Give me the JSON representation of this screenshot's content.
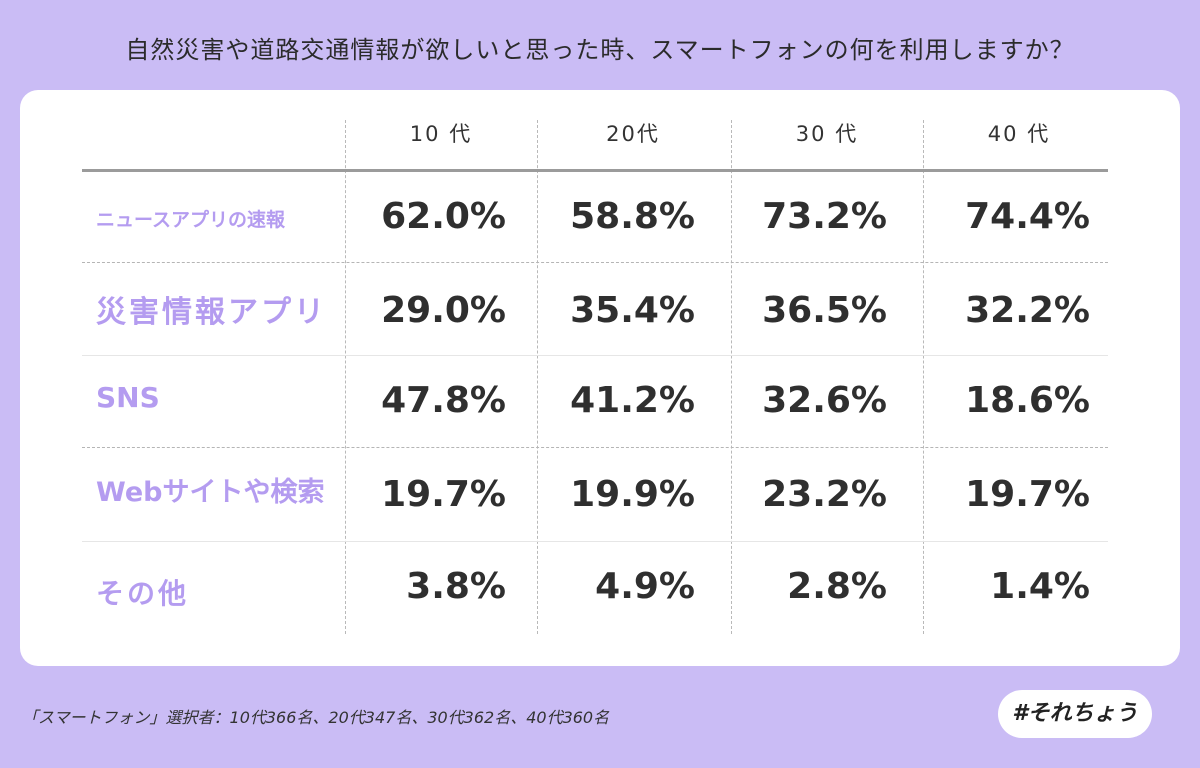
{
  "title": "自然災害や道路交通情報が欲しいと思った時、スマートフォンの何を利用しますか？",
  "chart_data": {
    "type": "table",
    "columns": [
      "10 代",
      "20代",
      "30 代",
      "40 代"
    ],
    "rows": [
      {
        "label": "ニュースアプリの速報",
        "values": [
          "62.0%",
          "58.8%",
          "73.2%",
          "74.4%"
        ]
      },
      {
        "label": "災害情報アプリ",
        "values": [
          "29.0%",
          "35.4%",
          "36.5%",
          "32.2%"
        ]
      },
      {
        "label": "SNS",
        "values": [
          "47.8%",
          "41.2%",
          "32.6%",
          "18.6%"
        ]
      },
      {
        "label": "Webサイトや検索",
        "values": [
          "19.7%",
          "19.9%",
          "23.2%",
          "19.7%"
        ]
      },
      {
        "label": "その他",
        "values": [
          "3.8%",
          "4.9%",
          "2.8%",
          "1.4%"
        ]
      }
    ]
  },
  "footnote": "「スマートフォン」選択者：10代366名、20代347名、30代362名、40代360名",
  "tag": "#それちょう",
  "colors": {
    "background": "#cabcf5",
    "label_accent": "#b49cf0",
    "value_text": "#2f2f2f"
  }
}
